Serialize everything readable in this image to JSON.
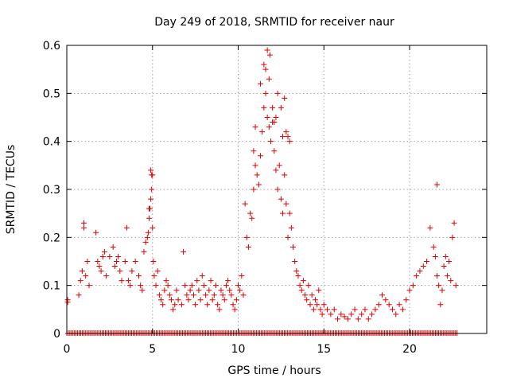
{
  "chart_data": {
    "type": "scatter",
    "title": "Day 249 of 2018, SRMTID for receiver naur",
    "xlabel": "GPS time / hours",
    "ylabel": "SRMTID / TECUs",
    "xlim": [
      0,
      24.5
    ],
    "ylim": [
      0,
      0.6
    ],
    "xticks": [
      0,
      5,
      10,
      15,
      20
    ],
    "yticks": [
      0,
      0.1,
      0.2,
      0.3,
      0.4,
      0.5,
      0.6
    ],
    "xtick_labels": [
      "0",
      "5",
      "10",
      "15",
      "20"
    ],
    "ytick_labels": [
      "0",
      "0.1",
      "0.2",
      "0.3",
      "0.4",
      "0.5",
      "0.6"
    ],
    "grid": true,
    "legend": "none",
    "marker": "+",
    "color": "#e00000",
    "zero_value_samples_span": [
      0,
      22.8
    ],
    "x": [
      0.05,
      0.7,
      0.8,
      0.9,
      1.0,
      1.1,
      1.2,
      1.3,
      1.7,
      1.8,
      1.9,
      2.0,
      2.1,
      2.2,
      2.3,
      2.5,
      2.7,
      2.8,
      2.9,
      3.0,
      3.1,
      3.2,
      3.4,
      3.5,
      3.6,
      3.7,
      3.8,
      4.0,
      4.2,
      4.3,
      4.4,
      4.5,
      4.6,
      4.7,
      4.75,
      4.8,
      4.85,
      4.9,
      4.95,
      5.0,
      5.05,
      5.1,
      5.2,
      5.3,
      5.4,
      5.5,
      5.6,
      5.7,
      5.8,
      5.9,
      6.0,
      6.1,
      6.2,
      6.3,
      6.4,
      6.5,
      6.7,
      6.8,
      6.9,
      7.0,
      7.1,
      7.2,
      7.3,
      7.4,
      7.5,
      7.6,
      7.7,
      7.8,
      7.9,
      8.0,
      8.1,
      8.2,
      8.3,
      8.4,
      8.5,
      8.6,
      8.7,
      8.8,
      8.9,
      9.0,
      9.1,
      9.2,
      9.3,
      9.4,
      9.5,
      9.6,
      9.7,
      9.8,
      9.9,
      10.0,
      10.1,
      10.2,
      10.3,
      10.4,
      10.5,
      10.6,
      10.7,
      10.8,
      10.9,
      11.0,
      11.1,
      11.2,
      11.3,
      11.4,
      11.5,
      11.6,
      11.7,
      11.8,
      11.9,
      12.0,
      12.1,
      12.2,
      12.3,
      12.4,
      12.5,
      12.6,
      12.7,
      12.8,
      12.9,
      13.0,
      13.1,
      13.2,
      13.3,
      13.4,
      13.5,
      13.6,
      13.7,
      13.8,
      13.9,
      14.0,
      14.1,
      14.2,
      14.3,
      14.4,
      14.5,
      14.6,
      14.7,
      14.8,
      14.9,
      15.0,
      15.2,
      15.4,
      15.6,
      15.8,
      16.0,
      16.2,
      16.4,
      16.6,
      16.8,
      17.0,
      17.2,
      17.4,
      17.6,
      17.8,
      18.0,
      18.2,
      18.4,
      18.6,
      18.8,
      19.0,
      19.2,
      19.4,
      19.6,
      19.8,
      20.0,
      20.2,
      20.4,
      20.6,
      20.8,
      21.0,
      21.2,
      21.4,
      21.5,
      21.6,
      21.7,
      21.8,
      21.9,
      22.0,
      22.1,
      22.2,
      22.3,
      22.4,
      22.5,
      22.6,
      22.7,
      11.6,
      11.7,
      11.8,
      11.85,
      12.0,
      12.1,
      12.3,
      12.5,
      12.7,
      12.9,
      11.0,
      10.9,
      11.3,
      11.5,
      12.2,
      12.6,
      12.8,
      13.0,
      4.9,
      4.95,
      5.0,
      4.8,
      21.6,
      1.0,
      0.05
    ],
    "y": [
      0.07,
      0.08,
      0.11,
      0.13,
      0.23,
      0.12,
      0.15,
      0.1,
      0.21,
      0.15,
      0.14,
      0.13,
      0.16,
      0.17,
      0.12,
      0.16,
      0.18,
      0.14,
      0.15,
      0.16,
      0.13,
      0.11,
      0.15,
      0.22,
      0.11,
      0.1,
      0.13,
      0.15,
      0.12,
      0.1,
      0.09,
      0.17,
      0.19,
      0.2,
      0.21,
      0.24,
      0.26,
      0.28,
      0.3,
      0.22,
      0.15,
      0.12,
      0.1,
      0.13,
      0.08,
      0.07,
      0.06,
      0.09,
      0.11,
      0.1,
      0.08,
      0.07,
      0.05,
      0.06,
      0.09,
      0.07,
      0.06,
      0.17,
      0.1,
      0.08,
      0.07,
      0.09,
      0.1,
      0.08,
      0.06,
      0.11,
      0.09,
      0.07,
      0.12,
      0.1,
      0.08,
      0.06,
      0.09,
      0.11,
      0.07,
      0.08,
      0.1,
      0.06,
      0.05,
      0.09,
      0.08,
      0.07,
      0.1,
      0.11,
      0.09,
      0.08,
      0.06,
      0.05,
      0.07,
      0.1,
      0.09,
      0.12,
      0.08,
      0.27,
      0.2,
      0.18,
      0.25,
      0.24,
      0.3,
      0.35,
      0.33,
      0.31,
      0.37,
      0.42,
      0.47,
      0.5,
      0.45,
      0.43,
      0.4,
      0.44,
      0.38,
      0.34,
      0.3,
      0.35,
      0.28,
      0.25,
      0.33,
      0.27,
      0.2,
      0.25,
      0.22,
      0.18,
      0.15,
      0.13,
      0.12,
      0.1,
      0.09,
      0.11,
      0.08,
      0.07,
      0.1,
      0.06,
      0.08,
      0.05,
      0.07,
      0.06,
      0.09,
      0.05,
      0.04,
      0.06,
      0.05,
      0.04,
      0.05,
      0.03,
      0.04,
      0.035,
      0.03,
      0.04,
      0.05,
      0.03,
      0.04,
      0.05,
      0.03,
      0.04,
      0.05,
      0.06,
      0.08,
      0.07,
      0.06,
      0.05,
      0.04,
      0.06,
      0.05,
      0.07,
      0.09,
      0.1,
      0.12,
      0.13,
      0.14,
      0.15,
      0.22,
      0.18,
      0.16,
      0.12,
      0.1,
      0.06,
      0.09,
      0.14,
      0.16,
      0.12,
      0.15,
      0.11,
      0.2,
      0.23,
      0.1,
      0.55,
      0.59,
      0.53,
      0.58,
      0.47,
      0.44,
      0.5,
      0.47,
      0.49,
      0.41,
      0.43,
      0.38,
      0.52,
      0.56,
      0.45,
      0.41,
      0.42,
      0.4,
      0.34,
      0.33,
      0.33,
      0.26,
      0.31,
      0.22,
      0.065
    ]
  }
}
